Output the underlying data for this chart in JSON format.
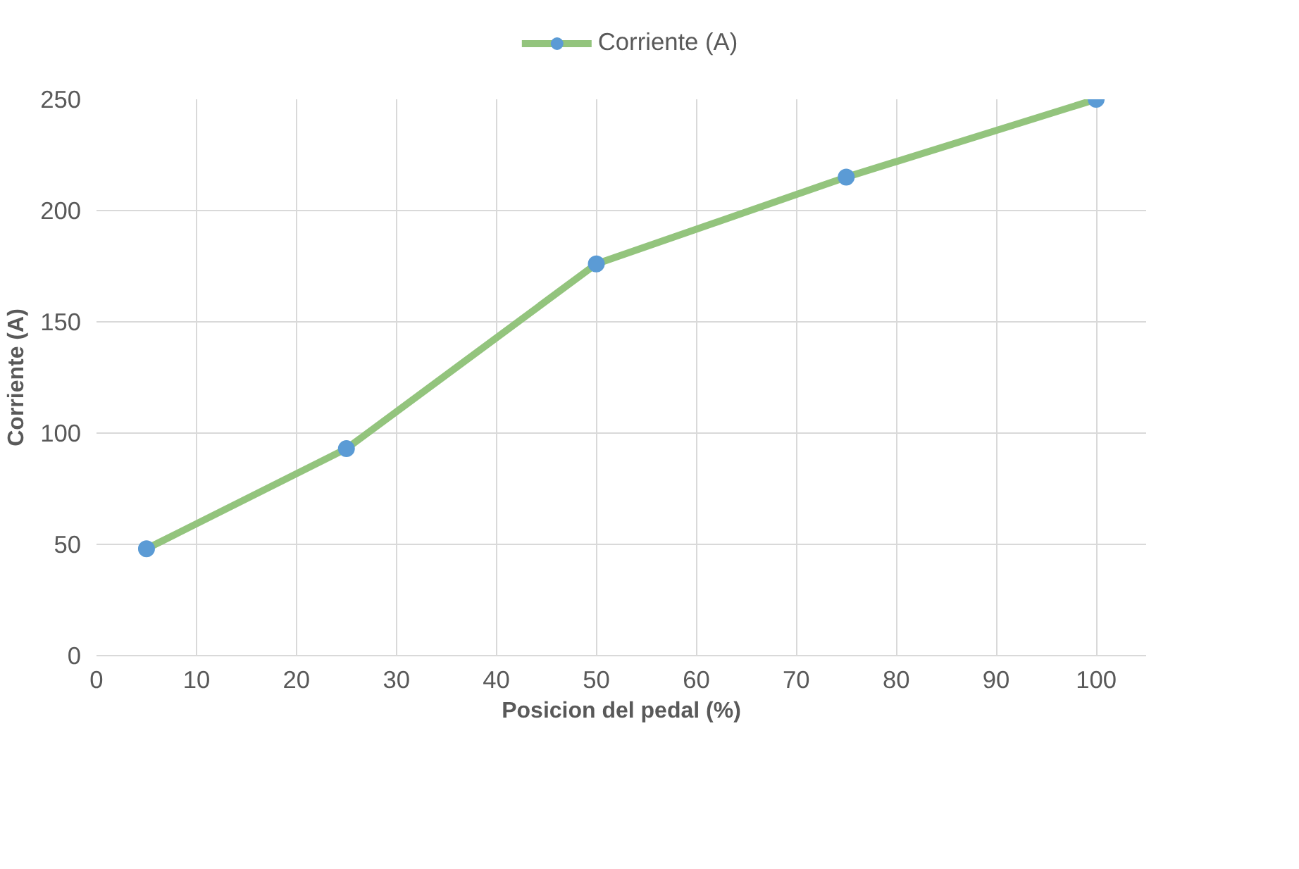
{
  "chart_data": {
    "type": "line",
    "xlabel": "Posicion del pedal (%)",
    "ylabel": "Corriente (A)",
    "x": [
      5,
      25,
      50,
      75,
      100
    ],
    "series": [
      {
        "name": "Corriente (A)",
        "color": "#93c47d",
        "colors": [
          "#5b9bd5",
          "#5b9bd5",
          "#5b9bd5",
          "#5b9bd5",
          "#5b9bd5"
        ],
        "values": [
          48,
          93,
          176,
          215,
          250
        ]
      }
    ],
    "xlim": [
      0,
      105
    ],
    "xticks": [
      0,
      10,
      20,
      30,
      40,
      50,
      60,
      70,
      80,
      90,
      100
    ],
    "ylim": [
      0,
      250
    ],
    "yticks": [
      0,
      50,
      100,
      150,
      200,
      250
    ],
    "grid": true,
    "legend": "top",
    "marker": "circle",
    "line_style": "solid"
  }
}
